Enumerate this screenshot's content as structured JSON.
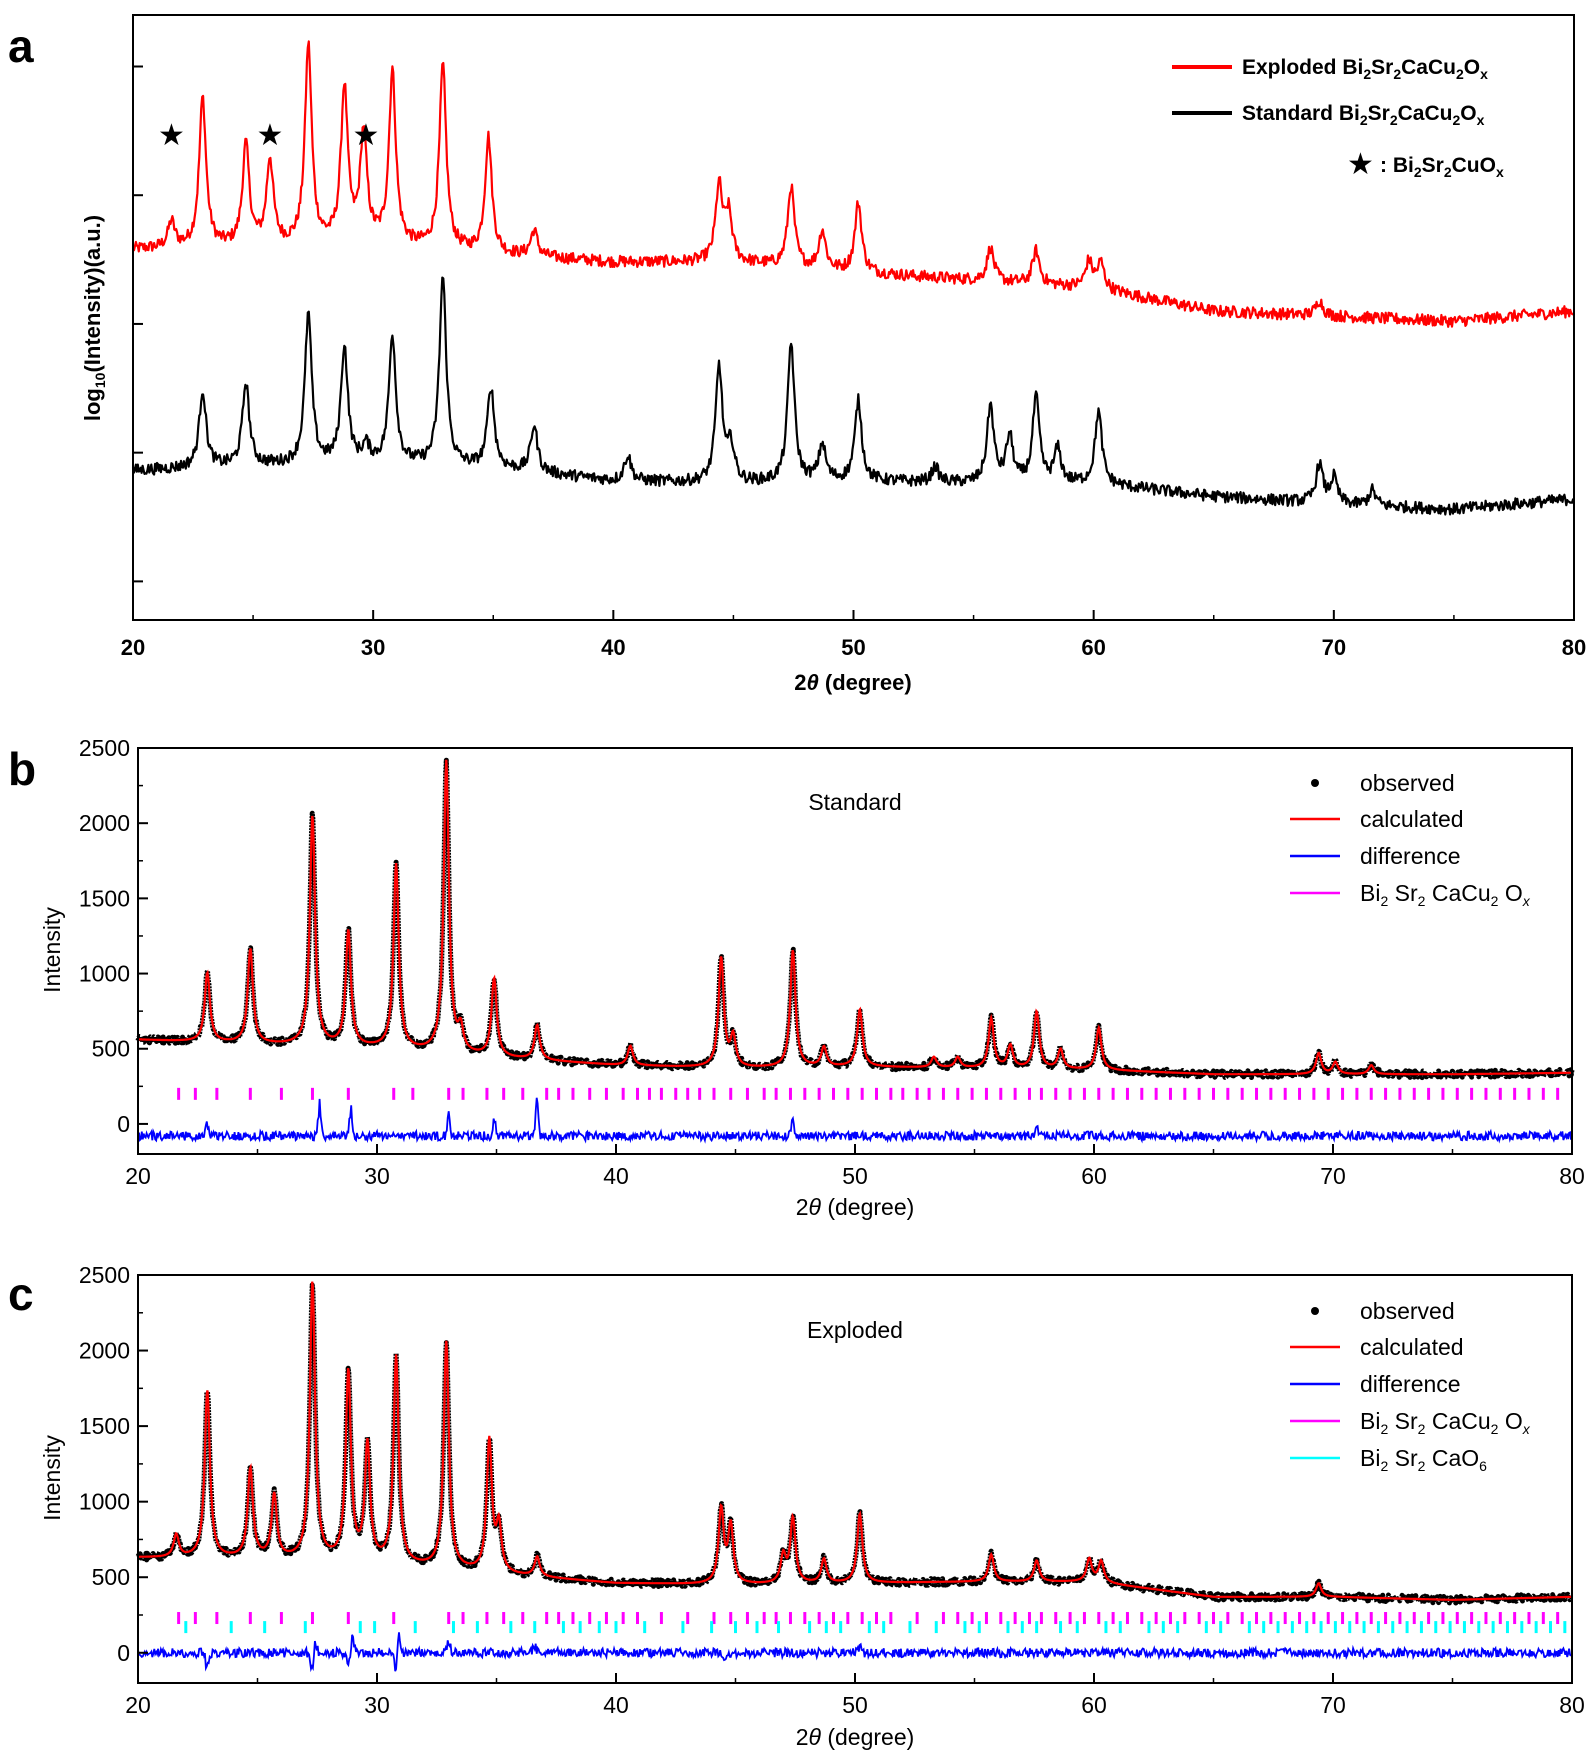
{
  "chart_data": [
    {
      "panel": "a",
      "type": "line",
      "xlabel": "2θ (degree)",
      "ylabel": "log10(Intensity)(a.u.)",
      "xlim": [
        20,
        80
      ],
      "xticks": [
        20,
        30,
        40,
        50,
        60,
        70,
        80
      ],
      "yticks_labeled": false,
      "legend_position": "top-right",
      "legend": [
        {
          "label": "Exploded Bi2Sr2CaCu2Ox",
          "color": "#ff0000"
        },
        {
          "label": "Standard Bi2Sr2CaCu2Ox",
          "color": "#000000"
        },
        {
          "label": "★ : Bi2Sr2CuOx",
          "marker": "star"
        }
      ],
      "star_markers_x": [
        21.6,
        25.7,
        29.7
      ],
      "series": [
        {
          "name": "Exploded Bi2Sr2CaCu2Ox",
          "color": "#ff0000",
          "baseline": [
            [
              20,
              0.29
            ],
            [
              25,
              0.3
            ],
            [
              30,
              0.31
            ],
            [
              35,
              0.27
            ],
            [
              40,
              0.24
            ],
            [
              45,
              0.24
            ],
            [
              50,
              0.2
            ],
            [
              55,
              0.17
            ],
            [
              60,
              0.14
            ],
            [
              65,
              0.05
            ],
            [
              70,
              0.03
            ],
            [
              75,
              0.01
            ],
            [
              80,
              0.05
            ]
          ],
          "peaks": [
            [
              21.6,
              0.1
            ],
            [
              22.9,
              0.58
            ],
            [
              24.7,
              0.39
            ],
            [
              25.7,
              0.33
            ],
            [
              27.3,
              0.77
            ],
            [
              28.8,
              0.6
            ],
            [
              29.6,
              0.42
            ],
            [
              30.8,
              0.67
            ],
            [
              32.9,
              0.71
            ],
            [
              34.8,
              0.45
            ],
            [
              36.7,
              0.1
            ],
            [
              44.4,
              0.29
            ],
            [
              44.8,
              0.18
            ],
            [
              47.4,
              0.31
            ],
            [
              48.7,
              0.15
            ],
            [
              50.2,
              0.27
            ],
            [
              55.7,
              0.13
            ],
            [
              57.6,
              0.13
            ],
            [
              59.8,
              0.1
            ],
            [
              60.3,
              0.1
            ],
            [
              69.4,
              0.06
            ]
          ]
        },
        {
          "name": "Standard Bi2Sr2CaCu2Ox",
          "color": "#000000",
          "baseline": [
            [
              20,
              -0.57
            ],
            [
              25,
              -0.55
            ],
            [
              30,
              -0.54
            ],
            [
              35,
              -0.56
            ],
            [
              40,
              -0.61
            ],
            [
              45,
              -0.62
            ],
            [
              50,
              -0.61
            ],
            [
              55,
              -0.62
            ],
            [
              60,
              -0.62
            ],
            [
              65,
              -0.67
            ],
            [
              70,
              -0.7
            ],
            [
              75,
              -0.72
            ],
            [
              80,
              -0.68
            ]
          ],
          "peaks": [
            [
              22.9,
              0.3
            ],
            [
              24.7,
              0.32
            ],
            [
              27.3,
              0.58
            ],
            [
              28.8,
              0.45
            ],
            [
              29.7,
              0.06
            ],
            [
              30.8,
              0.5
            ],
            [
              32.9,
              0.73
            ],
            [
              34.9,
              0.31
            ],
            [
              36.7,
              0.18
            ],
            [
              40.6,
              0.1
            ],
            [
              44.4,
              0.45
            ],
            [
              44.9,
              0.14
            ],
            [
              47.4,
              0.54
            ],
            [
              48.7,
              0.14
            ],
            [
              50.2,
              0.31
            ],
            [
              53.4,
              0.06
            ],
            [
              55.7,
              0.3
            ],
            [
              56.5,
              0.18
            ],
            [
              57.6,
              0.33
            ],
            [
              58.5,
              0.13
            ],
            [
              60.2,
              0.28
            ],
            [
              69.4,
              0.15
            ],
            [
              70.0,
              0.1
            ],
            [
              71.6,
              0.06
            ]
          ]
        }
      ]
    },
    {
      "panel": "b",
      "type": "line",
      "annotation": "Standard",
      "xlabel": "2θ (degree)",
      "ylabel": "Intensity",
      "xlim": [
        20,
        80
      ],
      "ylim": [
        -200,
        2500
      ],
      "xticks": [
        20,
        30,
        40,
        50,
        60,
        70,
        80
      ],
      "yticks": [
        0,
        500,
        1000,
        1500,
        2000,
        2500
      ],
      "legend_position": "top-right",
      "legend": [
        {
          "label": "observed",
          "marker": "dot",
          "color": "#000000"
        },
        {
          "label": "calculated",
          "color": "#ff0000"
        },
        {
          "label": "difference",
          "color": "#0000ff"
        },
        {
          "label": "Bi2Sr2CaCu2Ox",
          "color": "#ff00ff"
        }
      ],
      "baseline": [
        [
          20,
          560
        ],
        [
          25,
          530
        ],
        [
          30,
          500
        ],
        [
          35,
          440
        ],
        [
          40,
          390
        ],
        [
          45,
          370
        ],
        [
          50,
          380
        ],
        [
          55,
          370
        ],
        [
          60,
          360
        ],
        [
          65,
          330
        ],
        [
          70,
          330
        ],
        [
          75,
          330
        ],
        [
          80,
          340
        ]
      ],
      "peaks": [
        [
          22.9,
          460
        ],
        [
          24.7,
          630
        ],
        [
          27.3,
          1530
        ],
        [
          28.8,
          770
        ],
        [
          30.8,
          1230
        ],
        [
          32.9,
          1940
        ],
        [
          33.5,
          150
        ],
        [
          34.9,
          520
        ],
        [
          36.7,
          230
        ],
        [
          40.6,
          130
        ],
        [
          44.4,
          730
        ],
        [
          44.9,
          200
        ],
        [
          47.4,
          780
        ],
        [
          48.7,
          130
        ],
        [
          50.2,
          380
        ],
        [
          53.3,
          70
        ],
        [
          54.3,
          70
        ],
        [
          55.7,
          330
        ],
        [
          56.5,
          150
        ],
        [
          57.6,
          380
        ],
        [
          58.6,
          130
        ],
        [
          60.2,
          280
        ],
        [
          69.4,
          140
        ],
        [
          70.1,
          80
        ],
        [
          71.6,
          60
        ]
      ],
      "observed_color": "#000000",
      "calculated_color": "#ff0000",
      "difference_color": "#0000ff",
      "difference_offset": -80,
      "difference_spikes": [
        [
          22.9,
          120
        ],
        [
          27.6,
          220
        ],
        [
          28.9,
          210
        ],
        [
          33.0,
          160
        ],
        [
          34.9,
          130
        ],
        [
          36.7,
          260
        ],
        [
          47.4,
          140
        ],
        [
          57.6,
          120
        ]
      ],
      "reflection_rows": [
        {
          "name": "Bi2Sr2CaCu2Ox",
          "color": "#ff00ff",
          "y": 200,
          "positions": [
            21.7,
            22.4,
            23.3,
            24.7,
            26.0,
            27.3,
            28.8,
            30.7,
            31.5,
            33.0,
            33.6,
            34.6,
            35.3,
            36.1,
            37.1,
            37.6,
            38.2,
            38.9,
            39.6,
            40.3,
            40.9,
            41.4,
            41.9,
            42.5,
            43.0,
            43.5,
            44.1,
            44.8,
            45.5,
            46.2,
            46.7,
            47.3,
            47.9,
            48.5,
            49.1,
            49.7,
            50.3,
            50.9,
            51.5,
            52.0,
            52.6,
            53.1,
            53.7,
            54.3,
            54.9,
            55.5,
            56.1,
            56.7,
            57.3,
            57.8,
            58.4,
            59.0,
            59.6,
            60.2,
            60.8,
            61.4,
            62.0,
            62.6,
            63.2,
            63.8,
            64.4,
            65.0,
            65.6,
            66.2,
            66.8,
            67.4,
            68.0,
            68.6,
            69.2,
            69.8,
            70.4,
            71.0,
            71.6,
            72.2,
            72.8,
            73.4,
            74.0,
            74.6,
            75.2,
            75.8,
            76.4,
            77.0,
            77.6,
            78.2,
            78.8,
            79.4
          ]
        }
      ]
    },
    {
      "panel": "c",
      "type": "line",
      "annotation": "Exploded",
      "xlabel": "2θ (degree)",
      "ylabel": "Intensity",
      "xlim": [
        20,
        80
      ],
      "ylim": [
        -200,
        2500
      ],
      "xticks": [
        20,
        30,
        40,
        50,
        60,
        70,
        80
      ],
      "yticks": [
        0,
        500,
        1000,
        1500,
        2000,
        2500
      ],
      "legend_position": "top-right",
      "legend": [
        {
          "label": "observed",
          "marker": "dot",
          "color": "#000000"
        },
        {
          "label": "calculated",
          "color": "#ff0000"
        },
        {
          "label": "difference",
          "color": "#0000ff"
        },
        {
          "label": "Bi2Sr2CaCu2Ox",
          "color": "#ff00ff"
        },
        {
          "label": "Bi2Sr2CaO6",
          "color": "#00ffff"
        }
      ],
      "baseline": [
        [
          20,
          630
        ],
        [
          25,
          620
        ],
        [
          30,
          590
        ],
        [
          35,
          520
        ],
        [
          40,
          460
        ],
        [
          45,
          450
        ],
        [
          50,
          460
        ],
        [
          55,
          470
        ],
        [
          60,
          470
        ],
        [
          65,
          370
        ],
        [
          70,
          370
        ],
        [
          75,
          350
        ],
        [
          80,
          370
        ]
      ],
      "peaks": [
        [
          21.6,
          150
        ],
        [
          22.9,
          1110
        ],
        [
          24.7,
          590
        ],
        [
          25.7,
          420
        ],
        [
          27.3,
          1840
        ],
        [
          28.8,
          1250
        ],
        [
          29.6,
          770
        ],
        [
          30.8,
          1370
        ],
        [
          32.9,
          1500
        ],
        [
          34.7,
          870
        ],
        [
          35.1,
          300
        ],
        [
          36.7,
          130
        ],
        [
          44.4,
          490
        ],
        [
          44.8,
          380
        ],
        [
          47.0,
          180
        ],
        [
          47.4,
          430
        ],
        [
          48.7,
          160
        ],
        [
          50.2,
          460
        ],
        [
          55.7,
          180
        ],
        [
          57.6,
          140
        ],
        [
          59.8,
          150
        ],
        [
          60.3,
          140
        ],
        [
          69.4,
          90
        ]
      ],
      "observed_color": "#000000",
      "calculated_color": "#ff0000",
      "difference_color": "#0000ff",
      "difference_offset": 0,
      "difference_spikes": [
        [
          22.9,
          -130
        ],
        [
          27.3,
          -200
        ],
        [
          27.4,
          150
        ],
        [
          28.8,
          -110
        ],
        [
          29.0,
          120
        ],
        [
          30.8,
          -150
        ],
        [
          30.9,
          130
        ],
        [
          33.0,
          90
        ],
        [
          36.6,
          70
        ],
        [
          44.5,
          -60
        ],
        [
          50.2,
          60
        ]
      ],
      "reflection_rows": [
        {
          "name": "Bi2Sr2CaCu2Ox",
          "color": "#ff00ff",
          "y": 230,
          "positions": [
            21.7,
            22.4,
            23.3,
            24.7,
            26.0,
            27.3,
            28.8,
            30.7,
            33.0,
            33.6,
            34.6,
            35.3,
            36.1,
            37.1,
            37.6,
            38.2,
            38.9,
            39.6,
            40.3,
            40.9,
            41.9,
            43.0,
            44.1,
            44.8,
            45.5,
            46.2,
            46.7,
            47.3,
            47.9,
            48.5,
            49.1,
            49.7,
            50.3,
            50.9,
            51.5,
            52.6,
            53.7,
            54.3,
            54.9,
            55.5,
            56.1,
            56.7,
            57.3,
            57.8,
            58.4,
            59.0,
            59.6,
            60.2,
            60.8,
            61.4,
            62.0,
            62.6,
            63.2,
            63.8,
            64.4,
            65.0,
            65.6,
            66.2,
            66.8,
            67.4,
            68.0,
            68.6,
            69.2,
            69.8,
            70.4,
            71.0,
            71.6,
            72.2,
            72.8,
            73.4,
            74.0,
            74.6,
            75.2,
            75.8,
            76.4,
            77.0,
            77.6,
            78.2,
            78.8,
            79.4
          ]
        },
        {
          "name": "Bi2Sr2CaO6",
          "color": "#00ffff",
          "y": 170,
          "positions": [
            22.0,
            23.9,
            25.3,
            27.0,
            29.3,
            29.9,
            31.6,
            33.2,
            34.2,
            35.6,
            36.6,
            37.8,
            38.5,
            39.3,
            40.0,
            41.2,
            42.8,
            44.0,
            45.0,
            45.9,
            46.8,
            48.1,
            48.8,
            49.4,
            50.6,
            51.2,
            52.3,
            53.4,
            54.6,
            55.2,
            56.4,
            57.0,
            57.6,
            58.6,
            59.3,
            60.5,
            61.1,
            62.3,
            62.9,
            63.5,
            64.7,
            65.3,
            66.5,
            67.1,
            67.7,
            68.3,
            68.9,
            69.5,
            70.1,
            70.7,
            71.3,
            71.9,
            72.5,
            73.1,
            73.7,
            74.3,
            74.9,
            75.5,
            76.1,
            76.7,
            77.3,
            77.9,
            78.5,
            79.1,
            79.7
          ]
        }
      ]
    }
  ],
  "text": {
    "a_letter": "a",
    "b_letter": "b",
    "c_letter": "c",
    "a_ylabel_pre": "log",
    "a_ylabel_sub": "10",
    "a_ylabel_post": "(Intensity)(a.u.)",
    "xlabel_theta": "θ",
    "xlabel_pre": "2",
    "xlabel_post": " (degree)",
    "b_annotation": "Standard",
    "c_annotation": "Exploded",
    "intensity": "Intensity",
    "observed": "observed",
    "calculated": "calculated",
    "difference": "difference",
    "leg_a_exploded": "Exploded",
    "leg_a_standard": "Standard",
    "leg_a_star": "★",
    "colon": " : "
  }
}
